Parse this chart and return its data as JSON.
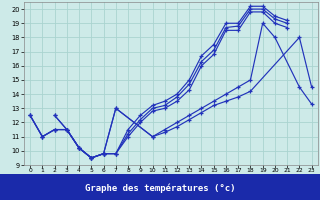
{
  "xlabel": "Graphe des températures (°c)",
  "bg_color": "#cdeae8",
  "grid_color": "#aad4d0",
  "line_color": "#2233bb",
  "xlim": [
    -0.5,
    23.5
  ],
  "ylim": [
    9,
    20.5
  ],
  "xticks": [
    0,
    1,
    2,
    3,
    4,
    5,
    6,
    7,
    8,
    9,
    10,
    11,
    12,
    13,
    14,
    15,
    16,
    17,
    18,
    19,
    20,
    21,
    22,
    23
  ],
  "yticks": [
    9,
    10,
    11,
    12,
    13,
    14,
    15,
    16,
    17,
    18,
    19,
    20
  ],
  "line1_x": [
    0,
    1,
    2,
    3,
    4,
    5,
    6,
    7,
    8,
    9,
    10,
    11,
    12,
    13,
    14,
    15,
    16,
    17,
    18,
    19,
    20,
    21
  ],
  "line1_y": [
    12.5,
    11,
    11.5,
    11.5,
    10.2,
    9.5,
    9.8,
    9.8,
    11.5,
    12.5,
    13.2,
    13.5,
    14.0,
    15.0,
    16.7,
    17.5,
    19.0,
    19.0,
    20.2,
    20.2,
    19.5,
    19.2
  ],
  "line2_x": [
    0,
    1,
    2,
    3,
    4,
    5,
    6,
    7,
    8,
    9,
    10,
    11,
    12,
    13,
    14,
    15,
    16,
    17,
    18,
    19,
    20,
    21
  ],
  "line2_y": [
    12.5,
    11,
    11.5,
    11.5,
    10.2,
    9.5,
    9.8,
    9.8,
    11.2,
    12.2,
    13.0,
    13.2,
    13.8,
    14.7,
    16.3,
    17.1,
    18.7,
    18.8,
    20.0,
    20.0,
    19.3,
    19.0
  ],
  "line3_x": [
    0,
    1,
    2,
    3,
    4,
    5,
    6,
    7,
    8,
    9,
    10,
    11,
    12,
    13,
    14,
    15,
    16,
    17,
    18,
    19,
    20,
    21
  ],
  "line3_y": [
    12.5,
    11,
    11.5,
    11.5,
    10.2,
    9.5,
    9.8,
    9.8,
    11.0,
    12.0,
    12.8,
    13.0,
    13.5,
    14.3,
    16.0,
    16.8,
    18.5,
    18.5,
    19.8,
    19.8,
    19.0,
    18.7
  ],
  "line4_x": [
    2,
    3,
    4,
    5,
    6,
    7,
    10,
    11,
    12,
    13,
    14,
    15,
    16,
    17,
    18,
    22,
    23
  ],
  "line4_y": [
    12.5,
    11.5,
    10.2,
    9.5,
    9.8,
    13.0,
    11.0,
    11.3,
    11.7,
    12.2,
    12.7,
    13.2,
    13.5,
    13.8,
    14.2,
    18.0,
    14.5
  ],
  "line5_x": [
    2,
    3,
    4,
    5,
    6,
    7,
    10,
    11,
    12,
    13,
    14,
    15,
    16,
    17,
    18,
    19,
    20,
    22,
    23
  ],
  "line5_y": [
    12.5,
    11.5,
    10.2,
    9.5,
    9.8,
    13.0,
    11.0,
    11.5,
    12.0,
    12.5,
    13.0,
    13.5,
    14.0,
    14.5,
    15.0,
    19.0,
    18.0,
    14.5,
    13.3
  ],
  "label_bar_color": "#1a2aaa",
  "label_text_color": "#ffffff",
  "label_fontsize": 6.5
}
